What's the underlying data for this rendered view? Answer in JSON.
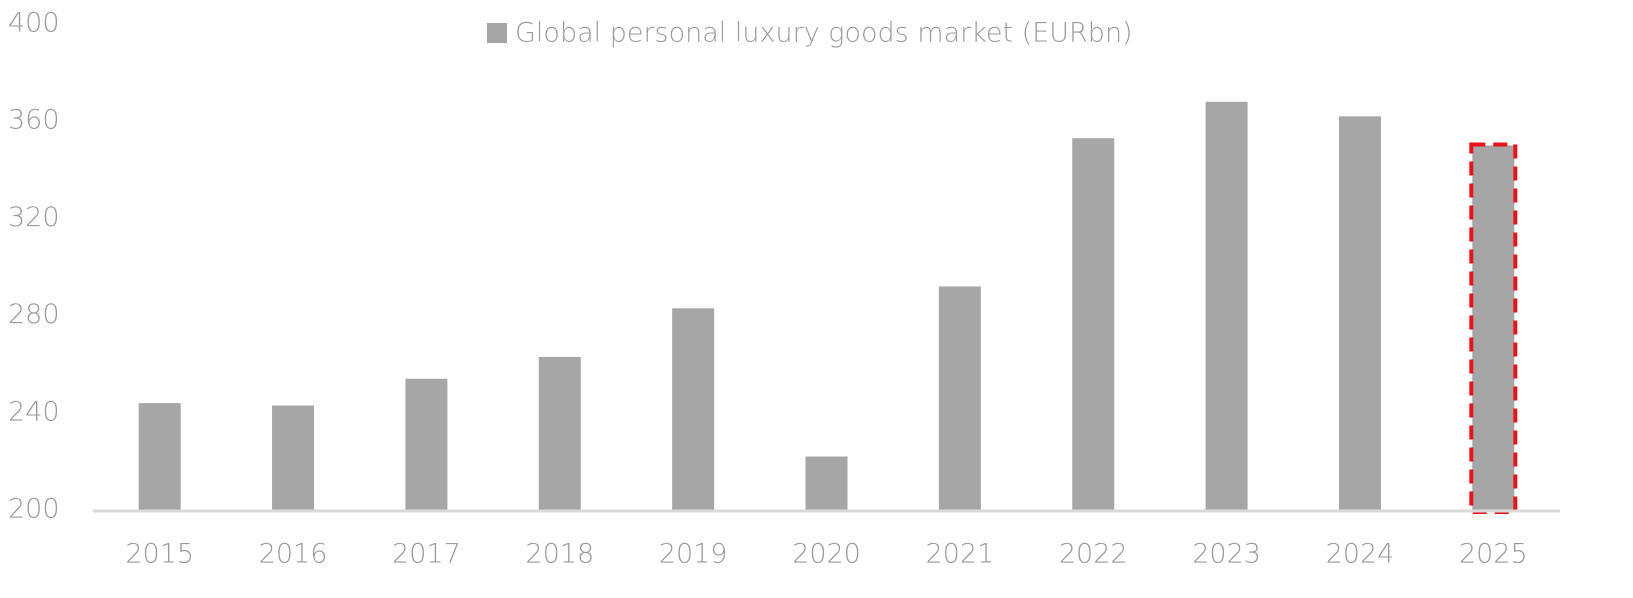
{
  "chart_data": {
    "type": "bar",
    "legend": "Global personal luxury goods market (EURbn)",
    "categories": [
      "2015",
      "2016",
      "2017",
      "2018",
      "2019",
      "2020",
      "2021",
      "2022",
      "2023",
      "2024",
      "2025"
    ],
    "values": [
      244,
      243,
      254,
      263,
      283,
      222,
      292,
      353,
      368,
      362,
      350
    ],
    "color": "#a6a6a6",
    "ylim": [
      200,
      400
    ],
    "yticks": [
      200,
      240,
      280,
      320,
      360,
      400
    ],
    "grid": false,
    "highlight_index": 10,
    "highlight_color": "#e8141c"
  }
}
